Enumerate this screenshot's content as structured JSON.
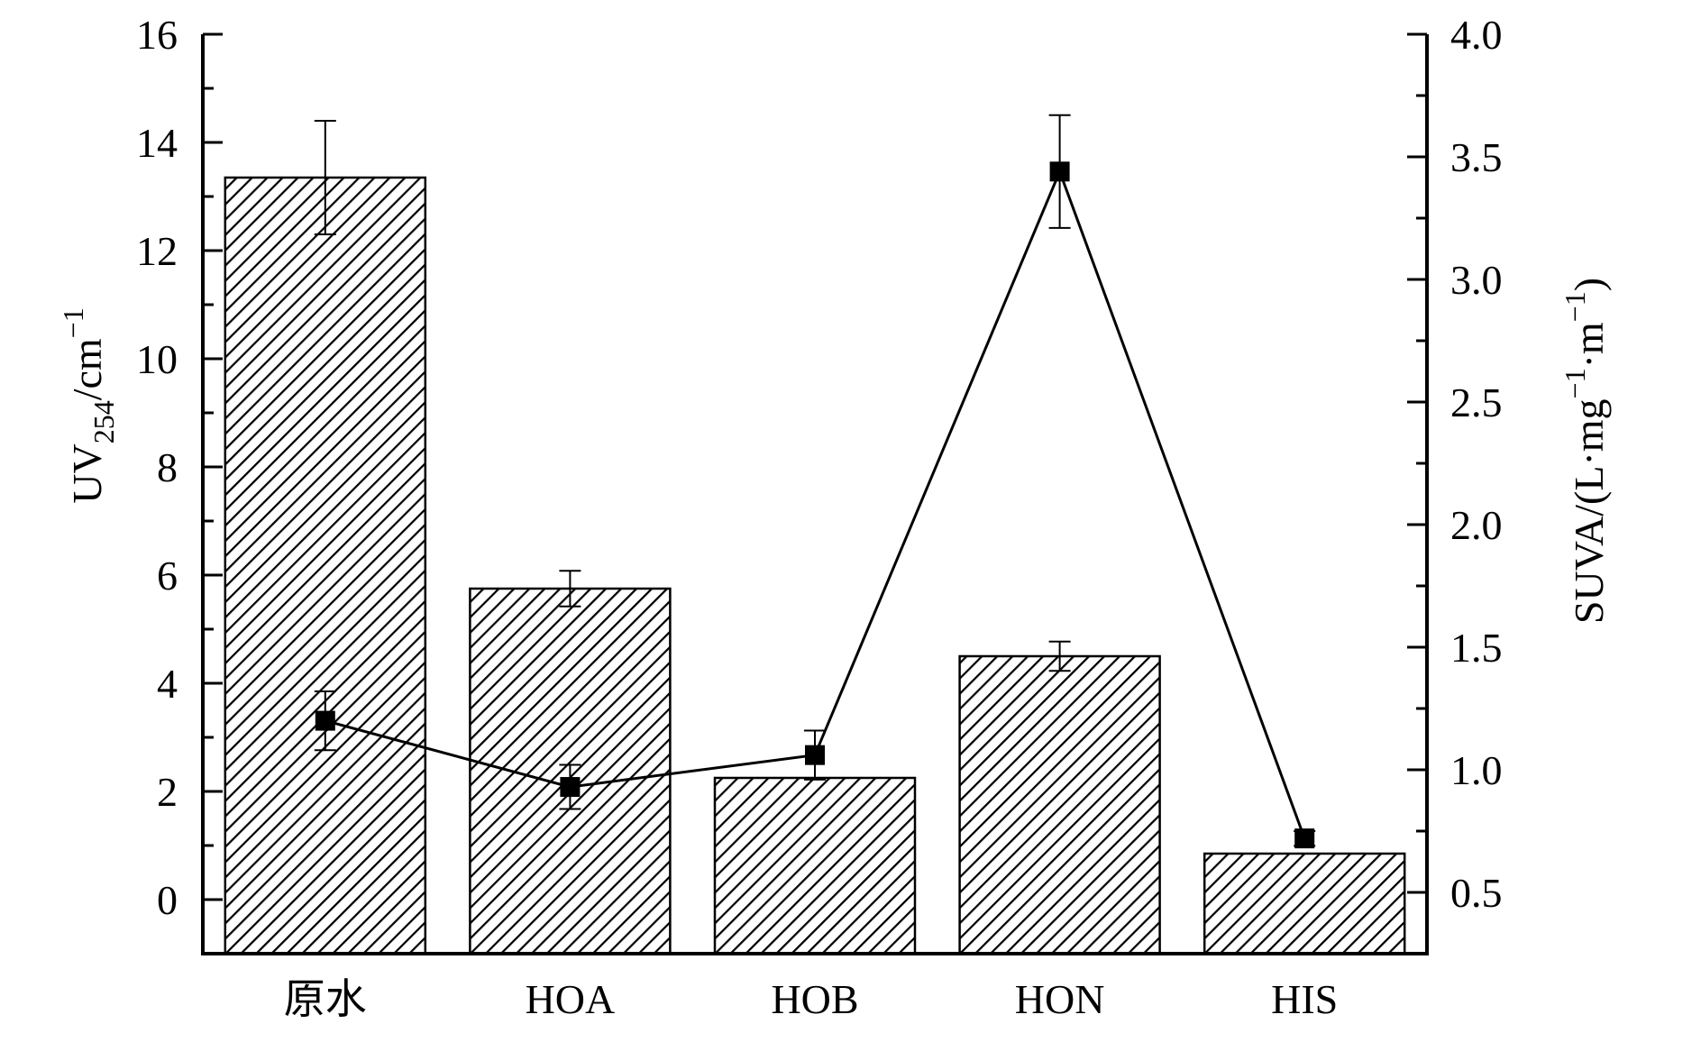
{
  "chart_data": {
    "type": "bar",
    "categories": [
      "原水",
      "HOA",
      "HOB",
      "HON",
      "HIS"
    ],
    "series": [
      {
        "type": "bar",
        "axis": "left",
        "values": [
          13.35,
          5.75,
          2.25,
          4.5,
          0.85
        ],
        "errors": [
          1.05,
          0.33,
          0.0,
          0.27,
          0.0
        ]
      },
      {
        "type": "line",
        "axis": "right",
        "values": [
          1.2,
          0.93,
          1.06,
          3.44,
          0.72
        ],
        "errors": [
          0.12,
          0.09,
          0.1,
          0.23,
          0.03
        ]
      }
    ],
    "y_left": {
      "label_main": "UV",
      "label_sub": "254",
      "label_unit": "/cm",
      "label_sup": "−1",
      "range": [
        -1,
        16
      ],
      "ticks": [
        "0",
        "2",
        "4",
        "6",
        "8",
        "10",
        "12",
        "14",
        "16"
      ]
    },
    "y_right": {
      "label_main": "SUVA/(L·mg",
      "label_sup1": "−1",
      "label_mid": "·m",
      "label_sup2": "−1",
      "label_end": ")",
      "range": [
        0.25,
        4.0
      ],
      "ticks": [
        "0.5",
        "1.0",
        "1.5",
        "2.0",
        "2.5",
        "3.0",
        "3.5",
        "4.0"
      ]
    },
    "legend": "none",
    "grid": false
  }
}
